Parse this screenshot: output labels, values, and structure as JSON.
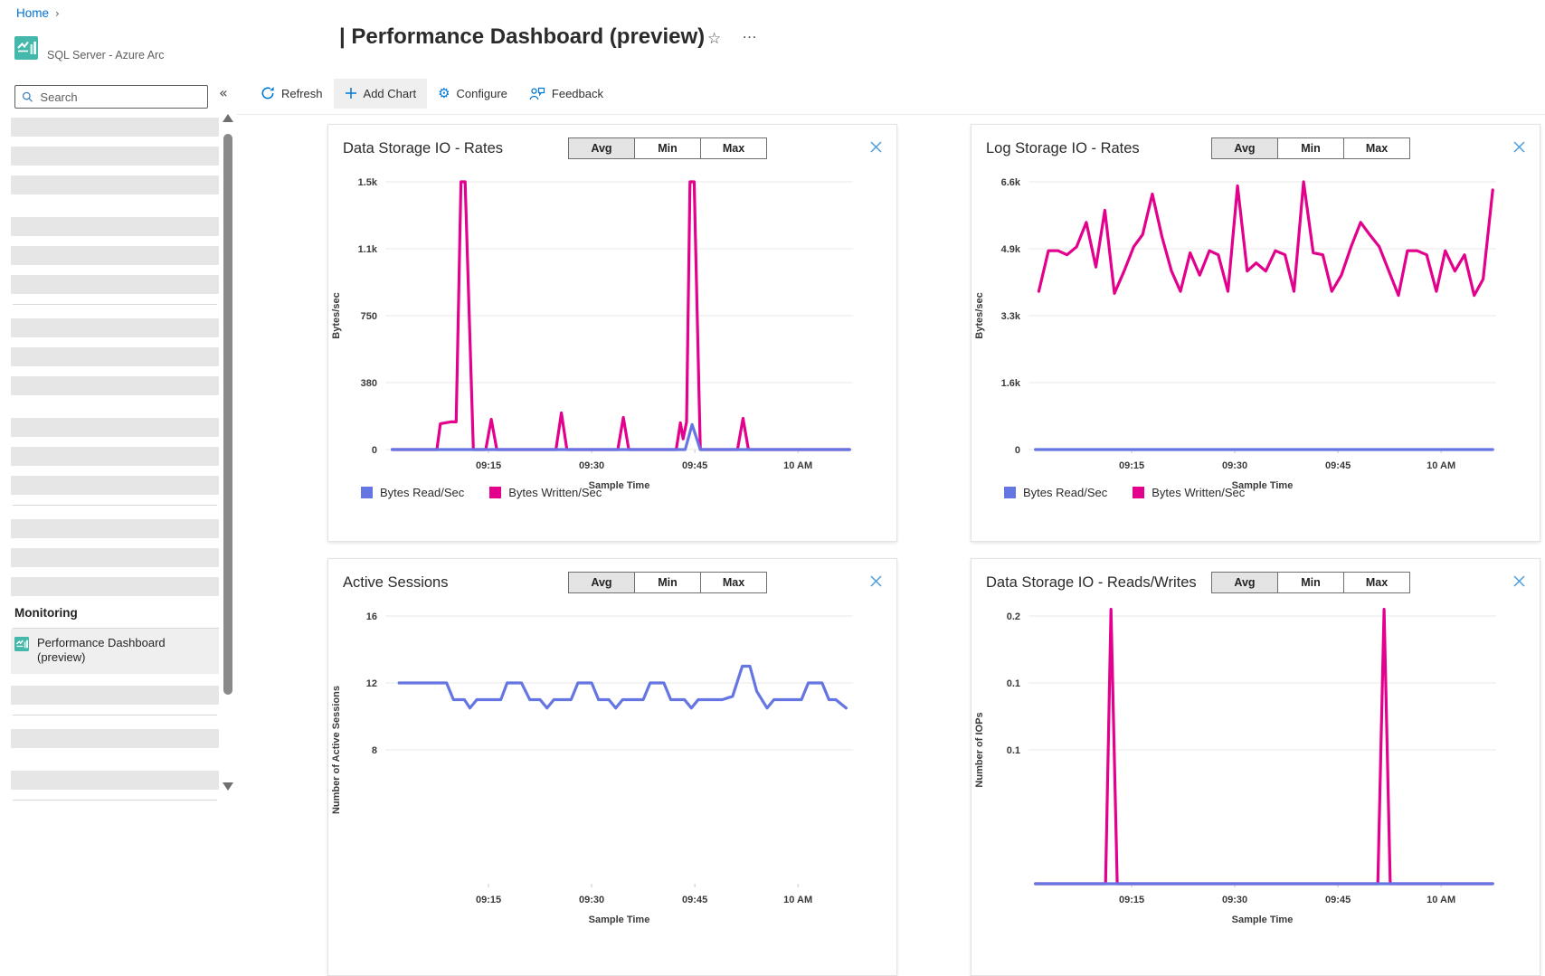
{
  "breadcrumb": {
    "home": "Home",
    "separator": "›"
  },
  "resource": {
    "name": "SQL Server - Azure Arc"
  },
  "sidebar": {
    "search_placeholder": "Search",
    "collapse_glyph": "«",
    "monitoring_heading": "Monitoring",
    "selected_item_label": "Performance Dashboard (preview)",
    "skeleton_top": [
      "bar",
      "bar",
      "bar",
      "gap",
      "bar",
      "bar",
      "bar",
      "divider",
      "bar",
      "bar",
      "bar",
      "gap",
      "bar",
      "bar",
      "bar",
      "divider",
      "bar",
      "bar",
      "bar"
    ],
    "skeleton_bottom": [
      "bar",
      "divider",
      "bar",
      "gap",
      "bar",
      "divider"
    ]
  },
  "header": {
    "title": "| Performance Dashboard (preview)",
    "star_glyph": "☆",
    "more_glyph": "…"
  },
  "toolbar": {
    "refresh": "Refresh",
    "add_chart": "Add Chart",
    "configure": "Configure",
    "feedback": "Feedback"
  },
  "agg": {
    "options": [
      "Avg",
      "Min",
      "Max"
    ],
    "selected": "Avg"
  },
  "colors": {
    "magenta": "#E3008C",
    "blue": "#6576E3",
    "link_blue": "#0072D1",
    "icon_blue": "#0078D4",
    "close_blue": "#4A9DE0",
    "teal_icon": "#45B8AC"
  },
  "chart_data": [
    {
      "type": "line",
      "title": "Data Storage IO - Rates",
      "xlabel": "Sample Time",
      "ylabel": "Bytes/sec",
      "x_range": [
        0,
        68
      ],
      "x_ticks": [
        {
          "m": 15,
          "label": "09:15"
        },
        {
          "m": 30,
          "label": "09:30"
        },
        {
          "m": 45,
          "label": "09:45"
        },
        {
          "m": 60,
          "label": "10 AM"
        }
      ],
      "y_range": [
        0,
        1500
      ],
      "y_ticks": [
        {
          "value": 1500,
          "label": "1.5k"
        },
        {
          "value": 1125,
          "label": "1.1k"
        },
        {
          "value": 750,
          "label": "750"
        },
        {
          "value": 375,
          "label": "380"
        },
        {
          "value": 0,
          "label": "0"
        }
      ],
      "series": [
        {
          "name": "Bytes Written/Sec",
          "color": "magenta",
          "points": [
            [
              1,
              0
            ],
            [
              7.5,
              0
            ],
            [
              8,
              145
            ],
            [
              9.5,
              155
            ],
            [
              10.3,
              155
            ],
            [
              11,
              1500
            ],
            [
              11.6,
              1500
            ],
            [
              12.8,
              0
            ],
            [
              14.6,
              0
            ],
            [
              15.4,
              170
            ],
            [
              16.2,
              0
            ],
            [
              24.8,
              0
            ],
            [
              25.6,
              205
            ],
            [
              26.4,
              0
            ],
            [
              33.8,
              0
            ],
            [
              34.6,
              180
            ],
            [
              35.4,
              0
            ],
            [
              42.3,
              0
            ],
            [
              42.9,
              150
            ],
            [
              43.3,
              60
            ],
            [
              43.8,
              155
            ],
            [
              44.3,
              1500
            ],
            [
              44.9,
              1500
            ],
            [
              45.8,
              0
            ],
            [
              51.2,
              0
            ],
            [
              52,
              175
            ],
            [
              52.8,
              0
            ],
            [
              67.5,
              0
            ]
          ]
        },
        {
          "name": "Bytes Read/Sec",
          "color": "blue",
          "points": [
            [
              1,
              0
            ],
            [
              43.6,
              0
            ],
            [
              44.6,
              140
            ],
            [
              45.8,
              0
            ],
            [
              67.5,
              0
            ]
          ]
        }
      ],
      "legend": [
        {
          "label": "Bytes Read/Sec",
          "color": "blue"
        },
        {
          "label": "Bytes Written/Sec",
          "color": "magenta"
        }
      ]
    },
    {
      "type": "line",
      "title": "Log Storage IO - Rates",
      "xlabel": "Sample Time",
      "ylabel": "Bytes/sec",
      "x_range": [
        0,
        68
      ],
      "x_ticks": [
        {
          "m": 15,
          "label": "09:15"
        },
        {
          "m": 30,
          "label": "09:30"
        },
        {
          "m": 45,
          "label": "09:45"
        },
        {
          "m": 60,
          "label": "10 AM"
        }
      ],
      "y_range": [
        0,
        6600
      ],
      "y_ticks": [
        {
          "value": 6600,
          "label": "6.6k"
        },
        {
          "value": 4950,
          "label": "4.9k"
        },
        {
          "value": 3300,
          "label": "3.3k"
        },
        {
          "value": 1650,
          "label": "1.6k"
        },
        {
          "value": 0,
          "label": "0"
        }
      ],
      "series": [
        {
          "name": "Bytes Written/Sec",
          "color": "magenta",
          "points": [
            [
              1.5,
              3900
            ],
            [
              2.9,
              4900
            ],
            [
              4.3,
              4900
            ],
            [
              5.6,
              4800
            ],
            [
              7,
              5000
            ],
            [
              8.4,
              5600
            ],
            [
              9.8,
              4500
            ],
            [
              11.1,
              5900
            ],
            [
              12.5,
              3850
            ],
            [
              13.9,
              4400
            ],
            [
              15.3,
              5000
            ],
            [
              16.6,
              5300
            ],
            [
              18,
              6300
            ],
            [
              19.4,
              5250
            ],
            [
              20.8,
              4400
            ],
            [
              22.1,
              3900
            ],
            [
              23.5,
              4850
            ],
            [
              24.9,
              4300
            ],
            [
              26.3,
              4900
            ],
            [
              27.6,
              4800
            ],
            [
              29,
              3900
            ],
            [
              30.4,
              6500
            ],
            [
              31.8,
              4400
            ],
            [
              33.1,
              4600
            ],
            [
              34.5,
              4400
            ],
            [
              35.9,
              4900
            ],
            [
              37.3,
              4800
            ],
            [
              38.6,
              3900
            ],
            [
              40,
              6600
            ],
            [
              41.4,
              4850
            ],
            [
              42.8,
              4800
            ],
            [
              44.1,
              3900
            ],
            [
              45.5,
              4300
            ],
            [
              46.9,
              5000
            ],
            [
              48.3,
              5600
            ],
            [
              49.6,
              5300
            ],
            [
              51,
              5000
            ],
            [
              52.4,
              4400
            ],
            [
              53.8,
              3800
            ],
            [
              55.1,
              4900
            ],
            [
              56.5,
              4900
            ],
            [
              57.9,
              4800
            ],
            [
              59.3,
              3900
            ],
            [
              60.6,
              4900
            ],
            [
              62,
              4400
            ],
            [
              63.4,
              4800
            ],
            [
              64.8,
              3800
            ],
            [
              66.1,
              4200
            ],
            [
              67.5,
              6400
            ]
          ]
        },
        {
          "name": "Bytes Read/Sec",
          "color": "blue",
          "points": [
            [
              1,
              0
            ],
            [
              67.5,
              0
            ]
          ]
        }
      ],
      "legend": [
        {
          "label": "Bytes Read/Sec",
          "color": "blue"
        },
        {
          "label": "Bytes Written/Sec",
          "color": "magenta"
        }
      ]
    },
    {
      "type": "line",
      "title": "Active Sessions",
      "xlabel": "Sample Time",
      "ylabel": "Number of Active Sessions",
      "x_range": [
        0,
        68
      ],
      "x_ticks": [
        {
          "m": 15,
          "label": "09:15"
        },
        {
          "m": 30,
          "label": "09:30"
        },
        {
          "m": 45,
          "label": "09:45"
        },
        {
          "m": 60,
          "label": "10 AM"
        }
      ],
      "y_range": [
        0,
        16
      ],
      "y_ticks": [
        {
          "value": 16,
          "label": "16"
        },
        {
          "value": 12,
          "label": "12"
        },
        {
          "value": 8,
          "label": "8"
        }
      ],
      "series": [
        {
          "color": "blue",
          "points": [
            [
              2,
              12
            ],
            [
              8.9,
              12
            ],
            [
              9.9,
              11
            ],
            [
              11.5,
              11
            ],
            [
              12.3,
              10.5
            ],
            [
              13.3,
              11
            ],
            [
              16.8,
              11
            ],
            [
              17.7,
              12
            ],
            [
              19.8,
              12
            ],
            [
              21,
              11
            ],
            [
              22.5,
              11
            ],
            [
              23.5,
              10.5
            ],
            [
              24.5,
              11
            ],
            [
              27,
              11
            ],
            [
              28,
              12
            ],
            [
              30,
              12
            ],
            [
              31,
              11
            ],
            [
              32.5,
              11
            ],
            [
              33.5,
              10.5
            ],
            [
              34.5,
              11
            ],
            [
              37.5,
              11
            ],
            [
              38.5,
              12
            ],
            [
              40.5,
              12
            ],
            [
              41.5,
              11
            ],
            [
              43.5,
              11
            ],
            [
              44.5,
              10.5
            ],
            [
              45.5,
              11
            ],
            [
              47.5,
              11
            ],
            [
              49,
              11
            ],
            [
              50.5,
              11.2
            ],
            [
              51.9,
              13
            ],
            [
              53,
              13
            ],
            [
              54,
              11.5
            ],
            [
              55.5,
              10.5
            ],
            [
              56.5,
              11
            ],
            [
              60.5,
              11
            ],
            [
              61.5,
              12
            ],
            [
              63.5,
              12
            ],
            [
              64.5,
              11
            ],
            [
              65.5,
              11
            ],
            [
              67,
              10.5
            ]
          ]
        }
      ]
    },
    {
      "type": "line",
      "title": "Data Storage IO - Reads/Writes",
      "xlabel": "Sample Time",
      "ylabel": "Number of IOPs",
      "x_range": [
        0,
        68
      ],
      "x_ticks": [
        {
          "m": 15,
          "label": "09:15"
        },
        {
          "m": 30,
          "label": "09:30"
        },
        {
          "m": 45,
          "label": "09:45"
        },
        {
          "m": 60,
          "label": "10 AM"
        }
      ],
      "y_range": [
        0,
        0.2
      ],
      "y_ticks": [
        {
          "value": 0.2,
          "label": "0.2"
        },
        {
          "value": 0.15,
          "label": "0.1"
        },
        {
          "value": 0.1,
          "label": "0.1"
        }
      ],
      "series": [
        {
          "color": "magenta",
          "points": [
            [
              1,
              0
            ],
            [
              11.2,
              0
            ],
            [
              12,
              0.205
            ],
            [
              12.9,
              0
            ],
            [
              50.8,
              0
            ],
            [
              51.7,
              0.205
            ],
            [
              52.6,
              0
            ],
            [
              67.5,
              0
            ]
          ]
        },
        {
          "color": "blue",
          "points": [
            [
              1,
              0
            ],
            [
              67.5,
              0
            ]
          ]
        }
      ]
    }
  ]
}
